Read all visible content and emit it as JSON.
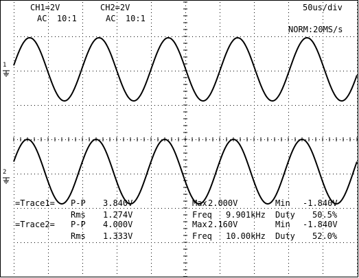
{
  "header": {
    "ch1_scale": "CH1=2V",
    "ch1_coupling": "AC  10:1",
    "ch2_scale": "CH2=2V",
    "ch2_coupling": "AC  10:1",
    "timebase": "50us/div",
    "acquisition": "NORM:20MS/s"
  },
  "markers": {
    "ch1": "1",
    "ch2": "2"
  },
  "measurements": {
    "trace1": {
      "label": "=Trace1=",
      "row1": {
        "k1": "P-P",
        "v1": "3.840V",
        "k2": "Max",
        "v2": "2.000V",
        "k3": "Min",
        "v3": "-1.840V"
      },
      "row2": {
        "k1": "Rms",
        "v1": "1.274V",
        "k2": "Freq",
        "v2": "9.901kHz",
        "k3": "Duty",
        "v3": "50.5%"
      }
    },
    "trace2": {
      "label": "=Trace2=",
      "row1": {
        "k1": "P-P",
        "v1": "4.000V",
        "k2": "Max",
        "v2": "2.160V",
        "k3": "Min",
        "v3": "-1.840V"
      },
      "row2": {
        "k1": "Rms",
        "v1": "1.333V",
        "k2": "Freq",
        "v2": "10.00kHz",
        "k3": "Duty",
        "v3": "52.0%"
      }
    }
  },
  "colors": {
    "background": "#ffffff",
    "trace": "#000000",
    "grid": "#000000"
  }
}
